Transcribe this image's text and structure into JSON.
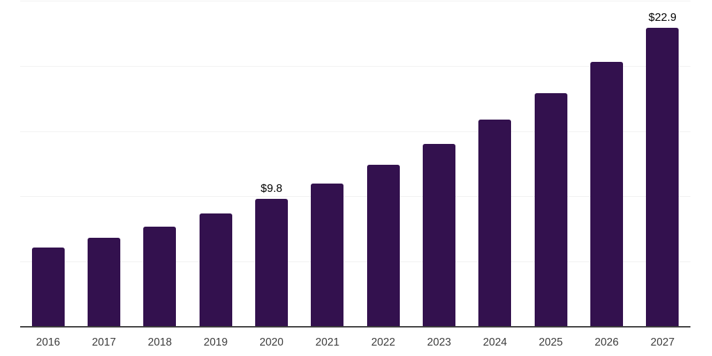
{
  "chart_data": {
    "type": "bar",
    "categories": [
      "2016",
      "2017",
      "2018",
      "2019",
      "2020",
      "2021",
      "2022",
      "2023",
      "2024",
      "2025",
      "2026",
      "2027"
    ],
    "values": [
      6.1,
      6.8,
      7.7,
      8.7,
      9.8,
      11.0,
      12.4,
      14.0,
      15.9,
      17.9,
      20.3,
      22.9
    ],
    "data_labels": [
      "",
      "",
      "",
      "",
      "$9.8",
      "",
      "",
      "",
      "",
      "",
      "",
      "$22.9"
    ],
    "xlabel": "",
    "ylabel": "",
    "ylim": [
      0,
      25
    ],
    "gridline_values": [
      5,
      10,
      15,
      20,
      25
    ],
    "grid_on": true,
    "legend": "none",
    "colors": {
      "bar": "#33114E",
      "gridline": "#f1f1f1",
      "axis_line": "#3d3d3d",
      "tick_label": "#3b3b3b",
      "data_label": "#000000",
      "background": "#ffffff"
    }
  }
}
